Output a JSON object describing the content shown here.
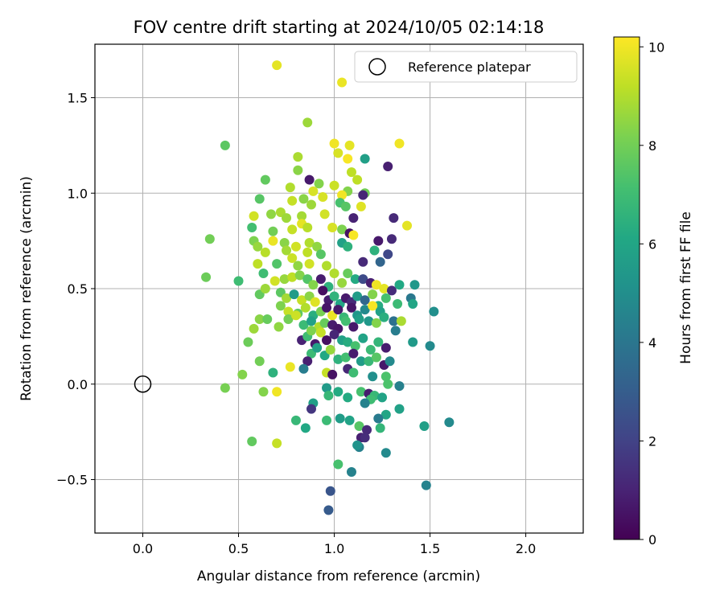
{
  "chart_data": {
    "type": "scatter",
    "title": "FOV centre drift starting at 2024/10/05 02:14:18",
    "xlabel": "Angular distance from reference (arcmin)",
    "ylabel": "Rotation from reference (arcmin)",
    "xlim": [
      -0.25,
      2.3
    ],
    "ylim": [
      -0.78,
      1.78
    ],
    "xticks": [
      0.0,
      0.5,
      1.0,
      1.5,
      2.0
    ],
    "xtick_labels": [
      "0.0",
      "0.5",
      "1.0",
      "1.5",
      "2.0"
    ],
    "yticks": [
      -0.5,
      0.0,
      0.5,
      1.0,
      1.5
    ],
    "ytick_labels": [
      "−0.5",
      "0.0",
      "0.5",
      "1.0",
      "1.5"
    ],
    "grid": true,
    "legend": {
      "position": "top-right",
      "entries": [
        "Reference platepar"
      ]
    },
    "reference_point": {
      "x": 0.0,
      "y": 0.0
    },
    "colorbar": {
      "label": "Hours from first FF file",
      "range": [
        0,
        10.2
      ],
      "ticks": [
        0,
        2,
        4,
        6,
        8,
        10
      ],
      "tick_labels": [
        "0",
        "2",
        "4",
        "6",
        "8",
        "10"
      ],
      "colormap": "viridis"
    },
    "points": [
      [
        0.7,
        1.67,
        9.8
      ],
      [
        1.04,
        1.58,
        9.9
      ],
      [
        0.43,
        1.25,
        7.6
      ],
      [
        0.86,
        1.37,
        8.7
      ],
      [
        1.0,
        1.26,
        10.0
      ],
      [
        1.08,
        1.25,
        9.8
      ],
      [
        1.34,
        1.26,
        10.0
      ],
      [
        1.02,
        1.21,
        9.6
      ],
      [
        0.81,
        1.19,
        8.9
      ],
      [
        1.16,
        1.18,
        5.7
      ],
      [
        1.07,
        1.18,
        10.1
      ],
      [
        1.28,
        1.14,
        0.9
      ],
      [
        0.81,
        1.12,
        8.4
      ],
      [
        1.09,
        1.11,
        9.2
      ],
      [
        1.12,
        1.07,
        9.2
      ],
      [
        0.87,
        1.07,
        0.7
      ],
      [
        0.64,
        1.07,
        7.7
      ],
      [
        0.77,
        1.03,
        9.0
      ],
      [
        0.92,
        1.05,
        8.3
      ],
      [
        0.89,
        1.01,
        9.6
      ],
      [
        1.0,
        1.04,
        9.4
      ],
      [
        1.07,
        1.01,
        8.3
      ],
      [
        1.16,
        1.0,
        8.0
      ],
      [
        1.15,
        0.99,
        1.1
      ],
      [
        1.04,
        0.99,
        10.0
      ],
      [
        0.94,
        0.98,
        9.6
      ],
      [
        0.84,
        0.97,
        8.4
      ],
      [
        0.78,
        0.96,
        9.3
      ],
      [
        0.61,
        0.97,
        7.5
      ],
      [
        0.88,
        0.94,
        8.7
      ],
      [
        1.03,
        0.95,
        7.2
      ],
      [
        1.14,
        0.93,
        9.7
      ],
      [
        1.06,
        0.93,
        7.5
      ],
      [
        0.72,
        0.9,
        8.9
      ],
      [
        0.67,
        0.89,
        8.5
      ],
      [
        0.58,
        0.88,
        9.5
      ],
      [
        0.75,
        0.87,
        8.7
      ],
      [
        0.83,
        0.88,
        8.8
      ],
      [
        0.95,
        0.89,
        9.5
      ],
      [
        1.1,
        0.87,
        1.0
      ],
      [
        1.31,
        0.87,
        1.2
      ],
      [
        0.57,
        0.82,
        7.1
      ],
      [
        0.68,
        0.8,
        8.0
      ],
      [
        0.78,
        0.81,
        9.3
      ],
      [
        0.83,
        0.84,
        9.8
      ],
      [
        0.86,
        0.82,
        9.1
      ],
      [
        0.99,
        0.82,
        9.6
      ],
      [
        1.04,
        0.81,
        8.2
      ],
      [
        1.08,
        0.79,
        0.5
      ],
      [
        1.1,
        0.78,
        10.1
      ],
      [
        1.38,
        0.83,
        9.8
      ],
      [
        1.23,
        0.75,
        0.7
      ],
      [
        1.3,
        0.76,
        1.2
      ],
      [
        0.35,
        0.76,
        8.0
      ],
      [
        0.58,
        0.75,
        8.2
      ],
      [
        0.6,
        0.72,
        8.6
      ],
      [
        0.68,
        0.75,
        9.9
      ],
      [
        0.74,
        0.74,
        8.4
      ],
      [
        0.8,
        0.72,
        9.5
      ],
      [
        0.87,
        0.74,
        9.0
      ],
      [
        0.91,
        0.72,
        8.5
      ],
      [
        1.04,
        0.74,
        5.8
      ],
      [
        1.07,
        0.72,
        6.5
      ],
      [
        0.64,
        0.69,
        9.1
      ],
      [
        0.75,
        0.7,
        8.8
      ],
      [
        0.78,
        0.66,
        9.4
      ],
      [
        0.86,
        0.69,
        9.2
      ],
      [
        0.93,
        0.68,
        7.5
      ],
      [
        1.21,
        0.7,
        6.5
      ],
      [
        1.28,
        0.68,
        2.2
      ],
      [
        0.6,
        0.63,
        9.2
      ],
      [
        0.7,
        0.63,
        7.4
      ],
      [
        0.81,
        0.62,
        8.5
      ],
      [
        0.87,
        0.63,
        9.5
      ],
      [
        0.96,
        0.62,
        9.0
      ],
      [
        1.15,
        0.64,
        1.2
      ],
      [
        1.24,
        0.64,
        3.3
      ],
      [
        0.33,
        0.56,
        7.9
      ],
      [
        0.5,
        0.54,
        7.0
      ],
      [
        0.63,
        0.58,
        7.0
      ],
      [
        0.69,
        0.54,
        9.5
      ],
      [
        0.74,
        0.55,
        8.6
      ],
      [
        0.78,
        0.56,
        9.2
      ],
      [
        0.82,
        0.57,
        8.3
      ],
      [
        0.86,
        0.55,
        7.4
      ],
      [
        0.89,
        0.52,
        8.3
      ],
      [
        0.93,
        0.55,
        0.8
      ],
      [
        0.97,
        0.51,
        6.5
      ],
      [
        1.0,
        0.58,
        9.0
      ],
      [
        1.04,
        0.53,
        8.6
      ],
      [
        1.07,
        0.58,
        7.8
      ],
      [
        1.11,
        0.55,
        6.2
      ],
      [
        1.15,
        0.55,
        2.3
      ],
      [
        1.19,
        0.53,
        0.9
      ],
      [
        1.22,
        0.52,
        10.0
      ],
      [
        1.26,
        0.5,
        9.8
      ],
      [
        1.3,
        0.49,
        1.3
      ],
      [
        1.34,
        0.52,
        6.1
      ],
      [
        1.42,
        0.52,
        5.4
      ],
      [
        0.61,
        0.47,
        7.7
      ],
      [
        0.64,
        0.5,
        8.7
      ],
      [
        0.72,
        0.48,
        7.6
      ],
      [
        0.75,
        0.45,
        8.8
      ],
      [
        0.79,
        0.47,
        5.6
      ],
      [
        0.83,
        0.44,
        9.3
      ],
      [
        0.87,
        0.46,
        8.4
      ],
      [
        0.9,
        0.43,
        9.7
      ],
      [
        0.94,
        0.49,
        0.4
      ],
      [
        0.97,
        0.44,
        0.8
      ],
      [
        1.0,
        0.46,
        6.6
      ],
      [
        1.03,
        0.42,
        6.0
      ],
      [
        1.06,
        0.45,
        0.7
      ],
      [
        1.09,
        0.43,
        1.2
      ],
      [
        1.12,
        0.46,
        5.6
      ],
      [
        1.16,
        0.44,
        3.4
      ],
      [
        1.2,
        0.47,
        8.3
      ],
      [
        1.23,
        0.41,
        6.3
      ],
      [
        1.27,
        0.45,
        7.2
      ],
      [
        1.33,
        0.42,
        6.9
      ],
      [
        1.4,
        0.45,
        4.1
      ],
      [
        0.72,
        0.41,
        8.2
      ],
      [
        0.76,
        0.38,
        9.3
      ],
      [
        0.81,
        0.37,
        7.7
      ],
      [
        0.85,
        0.4,
        9.0
      ],
      [
        0.89,
        0.36,
        6.4
      ],
      [
        0.93,
        0.38,
        8.1
      ],
      [
        0.96,
        0.4,
        0.6
      ],
      [
        0.99,
        0.36,
        9.9
      ],
      [
        1.02,
        0.39,
        0.7
      ],
      [
        1.05,
        0.35,
        6.8
      ],
      [
        1.09,
        0.4,
        0.6
      ],
      [
        1.12,
        0.36,
        5.3
      ],
      [
        1.16,
        0.39,
        4.8
      ],
      [
        1.2,
        0.41,
        10.1
      ],
      [
        1.24,
        0.38,
        5.8
      ],
      [
        1.41,
        0.42,
        6.0
      ],
      [
        1.52,
        0.38,
        5.0
      ],
      [
        0.55,
        0.22,
        7.9
      ],
      [
        0.58,
        0.29,
        8.7
      ],
      [
        0.61,
        0.34,
        8.4
      ],
      [
        0.65,
        0.34,
        7.8
      ],
      [
        0.71,
        0.3,
        8.5
      ],
      [
        0.76,
        0.34,
        8.0
      ],
      [
        0.8,
        0.36,
        9.4
      ],
      [
        0.84,
        0.31,
        6.9
      ],
      [
        0.88,
        0.33,
        5.8
      ],
      [
        0.92,
        0.3,
        9.0
      ],
      [
        0.95,
        0.32,
        7.8
      ],
      [
        0.99,
        0.31,
        0.8
      ],
      [
        1.02,
        0.29,
        0.6
      ],
      [
        1.06,
        0.33,
        7.1
      ],
      [
        1.1,
        0.3,
        0.7
      ],
      [
        1.13,
        0.34,
        5.7
      ],
      [
        1.18,
        0.33,
        5.4
      ],
      [
        1.22,
        0.32,
        8.3
      ],
      [
        1.26,
        0.35,
        6.4
      ],
      [
        1.31,
        0.33,
        3.8
      ],
      [
        1.35,
        0.33,
        8.9
      ],
      [
        1.32,
        0.28,
        4.3
      ],
      [
        0.83,
        0.23,
        1.0
      ],
      [
        0.86,
        0.25,
        7.0
      ],
      [
        0.88,
        0.28,
        8.2
      ],
      [
        0.9,
        0.21,
        0.7
      ],
      [
        0.93,
        0.27,
        9.3
      ],
      [
        0.96,
        0.23,
        0.4
      ],
      [
        1.0,
        0.26,
        1.1
      ],
      [
        1.04,
        0.23,
        5.8
      ],
      [
        1.07,
        0.22,
        6.3
      ],
      [
        1.11,
        0.2,
        7.2
      ],
      [
        1.15,
        0.24,
        5.9
      ],
      [
        1.19,
        0.18,
        6.9
      ],
      [
        1.23,
        0.22,
        6.7
      ],
      [
        1.27,
        0.19,
        0.8
      ],
      [
        1.41,
        0.22,
        5.5
      ],
      [
        1.5,
        0.2,
        4.8
      ],
      [
        0.61,
        0.12,
        8.0
      ],
      [
        0.88,
        0.16,
        6.9
      ],
      [
        0.91,
        0.19,
        5.8
      ],
      [
        0.95,
        0.15,
        6.1
      ],
      [
        0.98,
        0.18,
        8.6
      ],
      [
        1.02,
        0.13,
        6.5
      ],
      [
        1.06,
        0.14,
        7.1
      ],
      [
        1.1,
        0.16,
        0.8
      ],
      [
        1.14,
        0.12,
        5.6
      ],
      [
        1.18,
        0.12,
        6.8
      ],
      [
        1.22,
        0.14,
        7.5
      ],
      [
        1.26,
        0.1,
        0.7
      ],
      [
        1.29,
        0.12,
        4.8
      ],
      [
        0.86,
        0.12,
        0.9
      ],
      [
        0.77,
        0.09,
        9.9
      ],
      [
        0.96,
        0.06,
        9.3
      ],
      [
        0.99,
        0.05,
        0.5
      ],
      [
        1.07,
        0.08,
        1.1
      ],
      [
        1.1,
        0.06,
        7.0
      ],
      [
        0.52,
        0.05,
        8.3
      ],
      [
        0.68,
        0.06,
        6.5
      ],
      [
        0.84,
        0.08,
        4.3
      ],
      [
        1.2,
        0.04,
        5.0
      ],
      [
        1.27,
        0.04,
        7.3
      ],
      [
        1.28,
        0.0,
        7.3
      ],
      [
        0.43,
        -0.02,
        8.1
      ],
      [
        0.63,
        -0.04,
        8.3
      ],
      [
        0.7,
        -0.04,
        10.0
      ],
      [
        0.96,
        -0.02,
        5.5
      ],
      [
        1.02,
        -0.04,
        6.2
      ],
      [
        1.07,
        -0.07,
        6.2
      ],
      [
        1.14,
        -0.04,
        7.2
      ],
      [
        1.18,
        -0.05,
        0.8
      ],
      [
        1.21,
        -0.06,
        6.8
      ],
      [
        1.25,
        -0.07,
        5.9
      ],
      [
        1.34,
        -0.01,
        4.4
      ],
      [
        0.97,
        -0.06,
        6.8
      ],
      [
        0.89,
        -0.1,
        5.7
      ],
      [
        1.19,
        -0.08,
        7.0
      ],
      [
        1.16,
        -0.1,
        4.5
      ],
      [
        0.88,
        -0.13,
        1.6
      ],
      [
        1.47,
        -0.22,
        5.7
      ],
      [
        1.6,
        -0.2,
        4.8
      ],
      [
        1.34,
        -0.13,
        5.8
      ],
      [
        1.27,
        -0.16,
        6.0
      ],
      [
        1.23,
        -0.18,
        4.2
      ],
      [
        0.96,
        -0.19,
        6.9
      ],
      [
        1.03,
        -0.18,
        5.6
      ],
      [
        1.08,
        -0.19,
        5.9
      ],
      [
        0.8,
        -0.19,
        6.8
      ],
      [
        0.85,
        -0.23,
        6.1
      ],
      [
        1.13,
        -0.22,
        7.5
      ],
      [
        1.17,
        -0.24,
        1.2
      ],
      [
        1.24,
        -0.23,
        6.7
      ],
      [
        0.57,
        -0.3,
        7.7
      ],
      [
        0.7,
        -0.31,
        9.3
      ],
      [
        1.14,
        -0.28,
        0.9
      ],
      [
        1.16,
        -0.28,
        1.3
      ],
      [
        1.13,
        -0.33,
        4.4
      ],
      [
        1.12,
        -0.32,
        5.2
      ],
      [
        1.27,
        -0.36,
        4.8
      ],
      [
        1.02,
        -0.42,
        7.2
      ],
      [
        1.09,
        -0.46,
        4.5
      ],
      [
        1.48,
        -0.53,
        4.5
      ],
      [
        0.98,
        -0.56,
        2.7
      ],
      [
        0.97,
        -0.66,
        2.9
      ]
    ]
  }
}
